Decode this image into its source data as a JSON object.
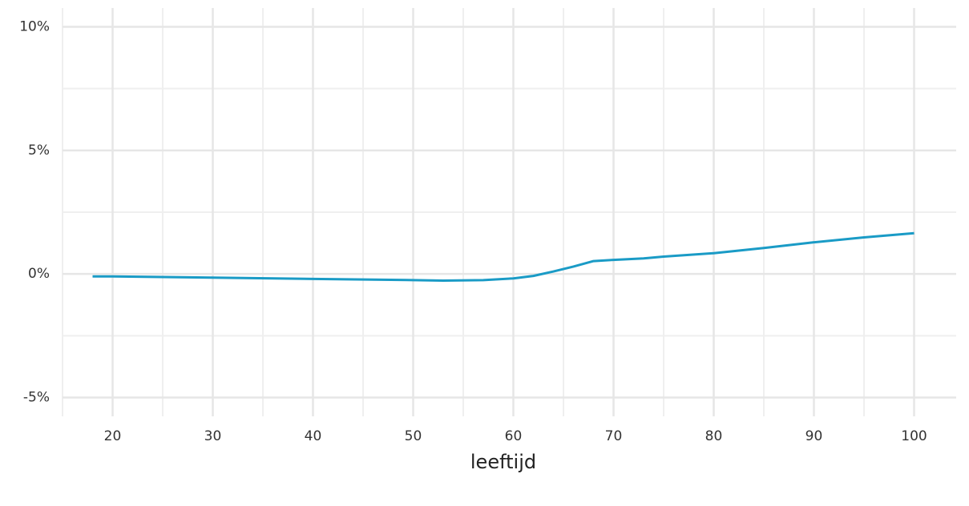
{
  "chart_data": {
    "type": "line",
    "x_label": "leeftijd",
    "x": [
      18,
      20,
      30,
      40,
      50,
      53,
      57,
      60,
      62,
      64,
      66,
      68,
      70,
      73,
      75,
      80,
      85,
      90,
      95,
      100
    ],
    "series": [
      {
        "color": "#1a9bc6",
        "values": [
          -0.1,
          -0.1,
          -0.15,
          -0.2,
          -0.25,
          -0.27,
          -0.25,
          -0.18,
          -0.08,
          0.1,
          0.3,
          0.52,
          0.57,
          0.63,
          0.7,
          0.84,
          1.05,
          1.28,
          1.48,
          1.65
        ]
      }
    ],
    "xlim": [
      15,
      104.2
    ],
    "xticks": [
      20,
      30,
      40,
      50,
      60,
      70,
      80,
      90,
      100
    ],
    "x_minor_grid": [
      15,
      25,
      35,
      45,
      55,
      65,
      75,
      85,
      95
    ],
    "ylim": [
      -5.6,
      10.6
    ],
    "yticks": [
      {
        "value": -5,
        "label": "-5%"
      },
      {
        "value": 0,
        "label": "0%"
      },
      {
        "value": 5,
        "label": "5%"
      },
      {
        "value": 10,
        "label": "10%"
      }
    ],
    "y_minor_grid": [
      -2.5,
      2.5,
      7.5
    ],
    "grid": true
  }
}
